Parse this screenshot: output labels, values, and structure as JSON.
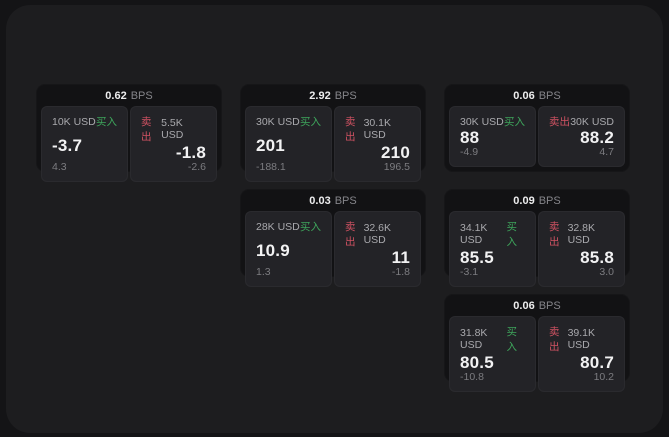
{
  "meta": {
    "bps_suffix": "BPS",
    "buy_label": "买入",
    "sell_label": "卖出"
  },
  "colors": {
    "buy_green": "#3ea65c",
    "sell_red": "#cf5262",
    "window_bg": "#1d1d1f",
    "card_bg": "#121214",
    "panel_bg": "#232327"
  },
  "cards": [
    {
      "bps": "0.62",
      "row": 1,
      "col": 1,
      "buy": {
        "amount": "10K USD",
        "price": "-3.7",
        "delta": "4.3"
      },
      "sell": {
        "amount": "5.5K USD",
        "price": "-1.8",
        "delta": "-2.6"
      }
    },
    {
      "bps": "2.92",
      "row": 1,
      "col": 2,
      "buy": {
        "amount": "30K USD",
        "price": "201",
        "delta": "-188.1"
      },
      "sell": {
        "amount": "30.1K USD",
        "price": "210",
        "delta": "196.5"
      }
    },
    {
      "bps": "0.06",
      "row": 1,
      "col": 3,
      "buy": {
        "amount": "30K USD",
        "price": "88",
        "delta": "-4.9"
      },
      "sell": {
        "amount": "30K USD",
        "price": "88.2",
        "delta": "4.7"
      }
    },
    {
      "bps": "0.03",
      "row": 2,
      "col": 2,
      "buy": {
        "amount": "28K USD",
        "price": "10.9",
        "delta": "1.3"
      },
      "sell": {
        "amount": "32.6K USD",
        "price": "11",
        "delta": "-1.8"
      }
    },
    {
      "bps": "0.09",
      "row": 2,
      "col": 3,
      "buy": {
        "amount": "34.1K USD",
        "price": "85.5",
        "delta": "-3.1"
      },
      "sell": {
        "amount": "32.8K USD",
        "price": "85.8",
        "delta": "3.0"
      }
    },
    {
      "bps": "0.06",
      "row": 3,
      "col": 3,
      "buy": {
        "amount": "31.8K USD",
        "price": "80.5",
        "delta": "-10.8"
      },
      "sell": {
        "amount": "39.1K USD",
        "price": "80.7",
        "delta": "10.2"
      }
    }
  ]
}
